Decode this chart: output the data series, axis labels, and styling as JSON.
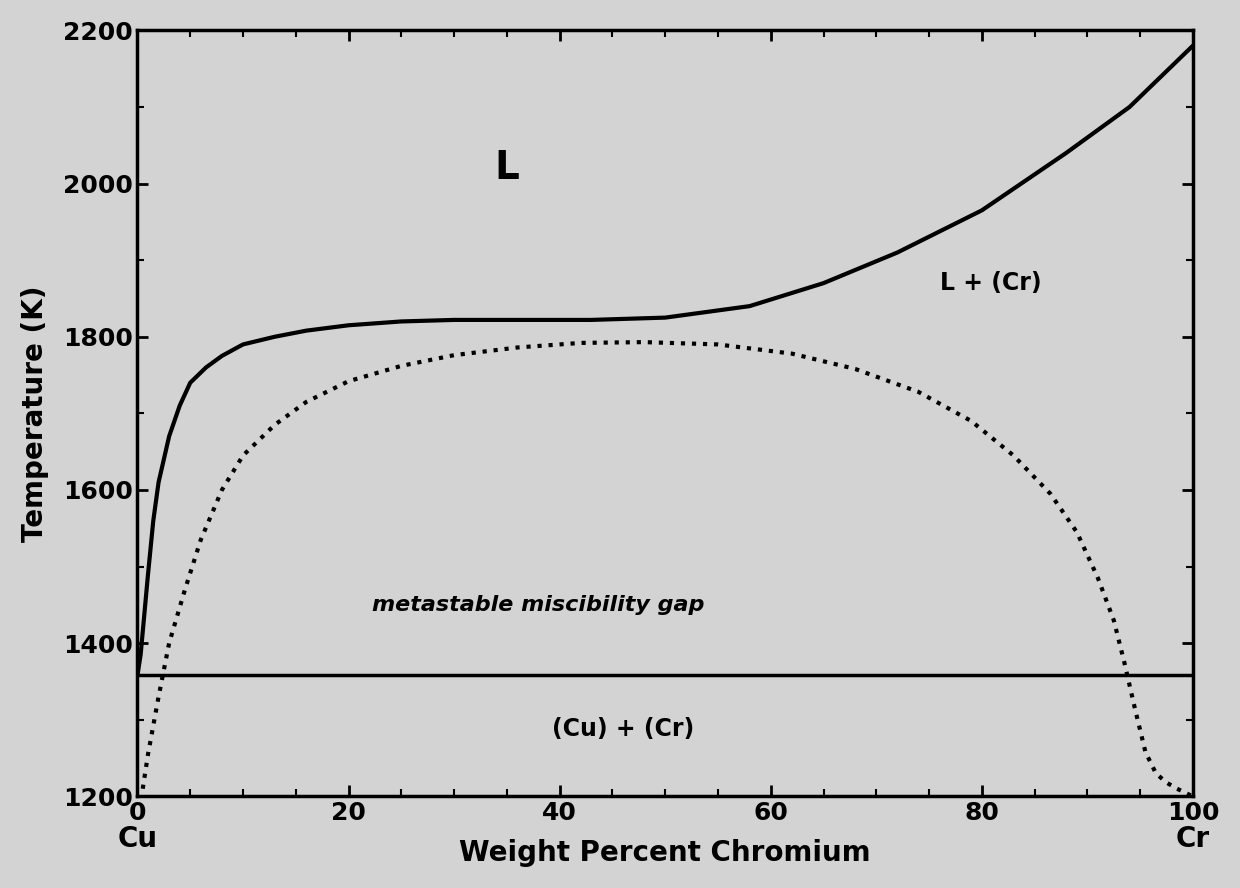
{
  "title": "",
  "xlabel": "Weight Percent Chromium",
  "ylabel": "Temperature (K)",
  "xlim": [
    0,
    100
  ],
  "ylim": [
    1200,
    2200
  ],
  "xticks": [
    0,
    20,
    40,
    60,
    80,
    100
  ],
  "yticks": [
    1200,
    1400,
    1600,
    1800,
    2000,
    2200
  ],
  "cu_label": "Cu",
  "cr_label": "Cr",
  "L_label": "L",
  "L_Cr_label": "L + (Cr)",
  "Cu_Cr_label": "(Cu) + (Cr)",
  "metastable_label": "metastable miscibility gap",
  "eutectic_T": 1358,
  "background_color": "#d3d3d3",
  "plot_bg_color": "#d3d3d3",
  "line_color": "#000000",
  "solidus_x": [
    0.0,
    0.3,
    0.6,
    1.0,
    1.5,
    2.0,
    3.0,
    4.0,
    5.0,
    6.5,
    8.0,
    10.0,
    13.0,
    16.0,
    20.0,
    25.0,
    30.0,
    36.0,
    43.0,
    50.0,
    58.0,
    65.0,
    72.0,
    80.0,
    88.0,
    94.0,
    100.0
  ],
  "solidus_y": [
    1358,
    1385,
    1430,
    1490,
    1560,
    1610,
    1670,
    1710,
    1740,
    1760,
    1775,
    1790,
    1800,
    1808,
    1815,
    1820,
    1822,
    1822,
    1822,
    1825,
    1840,
    1870,
    1910,
    1965,
    2040,
    2100,
    2180
  ],
  "miscibility_x": [
    0.5,
    1.0,
    2.0,
    3.0,
    4.5,
    6.0,
    8.0,
    10.0,
    13.0,
    16.0,
    20.0,
    25.0,
    30.0,
    36.0,
    42.0,
    48.0,
    55.0,
    62.0,
    68.0,
    74.0,
    79.0,
    83.0,
    86.5,
    89.0,
    91.0,
    92.5,
    93.5,
    94.5,
    95.5,
    96.5,
    97.5,
    98.5,
    100.0
  ],
  "miscibility_y": [
    1210,
    1255,
    1330,
    1400,
    1470,
    1535,
    1600,
    1645,
    1685,
    1715,
    1742,
    1762,
    1776,
    1786,
    1792,
    1793,
    1790,
    1778,
    1758,
    1728,
    1690,
    1645,
    1595,
    1545,
    1485,
    1430,
    1375,
    1315,
    1258,
    1230,
    1218,
    1210,
    1200
  ]
}
